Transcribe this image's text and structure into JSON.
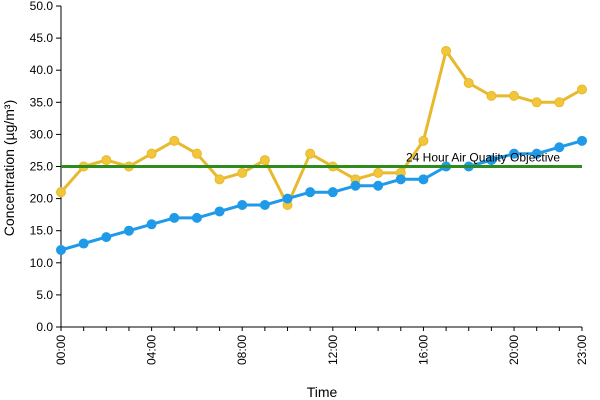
{
  "chart_data": {
    "type": "line",
    "title": "",
    "xlabel": "Time",
    "ylabel": "Concentration (µg/m³)",
    "ylim": [
      0,
      50
    ],
    "y_ticks": [
      "0.0",
      "5.0",
      "10.0",
      "15.0",
      "20.0",
      "25.0",
      "30.0",
      "35.0",
      "40.0",
      "45.0",
      "50.0"
    ],
    "x_hours": [
      0,
      1,
      2,
      3,
      4,
      5,
      6,
      7,
      8,
      9,
      10,
      11,
      12,
      13,
      14,
      15,
      16,
      17,
      18,
      19,
      20,
      21,
      22,
      23
    ],
    "x_tick_labels": [
      {
        "hour": 0,
        "label": "00:00"
      },
      {
        "hour": 4,
        "label": "04:00"
      },
      {
        "hour": 8,
        "label": "08:00"
      },
      {
        "hour": 12,
        "label": "12:00"
      },
      {
        "hour": 16,
        "label": "16:00"
      },
      {
        "hour": 20,
        "label": "20:00"
      },
      {
        "hour": 23,
        "label": "23:00"
      }
    ],
    "grid": false,
    "series": [
      {
        "color": "#f2c63a",
        "stroke": "#e8b92c",
        "values": [
          21,
          25,
          26,
          25,
          27,
          29,
          27,
          23,
          24,
          26,
          19,
          27,
          25,
          23,
          24,
          24,
          29,
          43,
          38,
          36,
          36,
          35,
          35,
          37
        ]
      },
      {
        "color": "#1e9ae8",
        "stroke": "#1e9ae8",
        "values": [
          12,
          13,
          14,
          15,
          16,
          17,
          17,
          18,
          19,
          19,
          20,
          21,
          21,
          22,
          22,
          23,
          23,
          25,
          25,
          26,
          27,
          27,
          28,
          29
        ]
      }
    ],
    "reference_line": {
      "value": 25,
      "label": "24 Hour Air Quality Objective",
      "color": "#2e8b1e"
    }
  }
}
